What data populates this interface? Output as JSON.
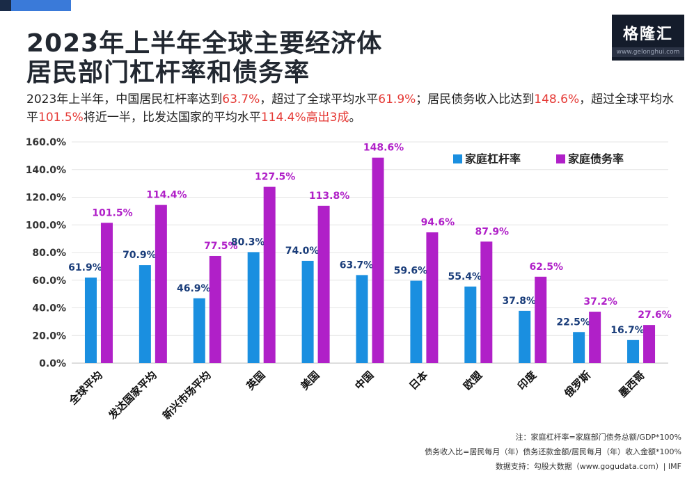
{
  "title_line1": "2023年上半年全球主要经济体",
  "title_line2": "居民部门杠杆率和债务率",
  "subtitle": {
    "p1": "2023年上半年，中国居民杠杆率达到",
    "v1": "63.7%",
    "p2": "，超过了全球平均水平",
    "v2": "61.9%",
    "p3": "；居民债务收入比达到",
    "v3": "148.6%",
    "p4": "，超过全球平均水平",
    "v4": "101.5%",
    "p5": "将近一半，比发达国家的平均水平",
    "v5": "114.4%高出3成",
    "p6": "。"
  },
  "logo": {
    "name": "格隆汇",
    "url": "www.gelonghui.com"
  },
  "colors": {
    "leverage": "#1a8fe0",
    "debt": "#b020c8",
    "highlight": "#e53935",
    "leverage_label": "#1a3d7a"
  },
  "chart_data": {
    "type": "bar",
    "categories": [
      "全球平均",
      "发达国家平均",
      "新兴市场平均",
      "英国",
      "美国",
      "中国",
      "日本",
      "欧盟",
      "印度",
      "俄罗斯",
      "墨西哥"
    ],
    "series": [
      {
        "name": "家庭杠杆率",
        "values": [
          61.9,
          70.9,
          46.9,
          80.3,
          74.0,
          63.7,
          59.6,
          55.4,
          37.8,
          22.5,
          16.7
        ]
      },
      {
        "name": "家庭债务率",
        "values": [
          101.5,
          114.4,
          77.5,
          127.5,
          113.8,
          148.6,
          94.6,
          87.9,
          62.5,
          37.2,
          27.6
        ]
      }
    ],
    "value_labels": [
      [
        "61.9%",
        "70.9%",
        "46.9%",
        "80.3%",
        "74.0%",
        "63.7%",
        "59.6%",
        "55.4%",
        "37.8%",
        "22.5%",
        "16.7%"
      ],
      [
        "101.5%",
        "114.4%",
        "77.5%",
        "127.5%",
        "113.8%",
        "148.6%",
        "94.6%",
        "87.9%",
        "62.5%",
        "37.2%",
        "27.6%"
      ]
    ],
    "yticks": [
      "0.0%",
      "20.0%",
      "40.0%",
      "60.0%",
      "80.0%",
      "100.0%",
      "120.0%",
      "140.0%",
      "160.0%"
    ],
    "ylim": [
      0,
      160
    ],
    "grid": true,
    "legend_position": "top-right"
  },
  "notes": {
    "line1": "注：家庭杠杆率=家庭部门债务总额/GDP*100%",
    "line2": "债务收入比=居民每月（年）债务还款金额/居民每月（年）收入金额*100%",
    "line3": "数据支持：勾股大数据（www.gogudata.com）| IMF"
  }
}
